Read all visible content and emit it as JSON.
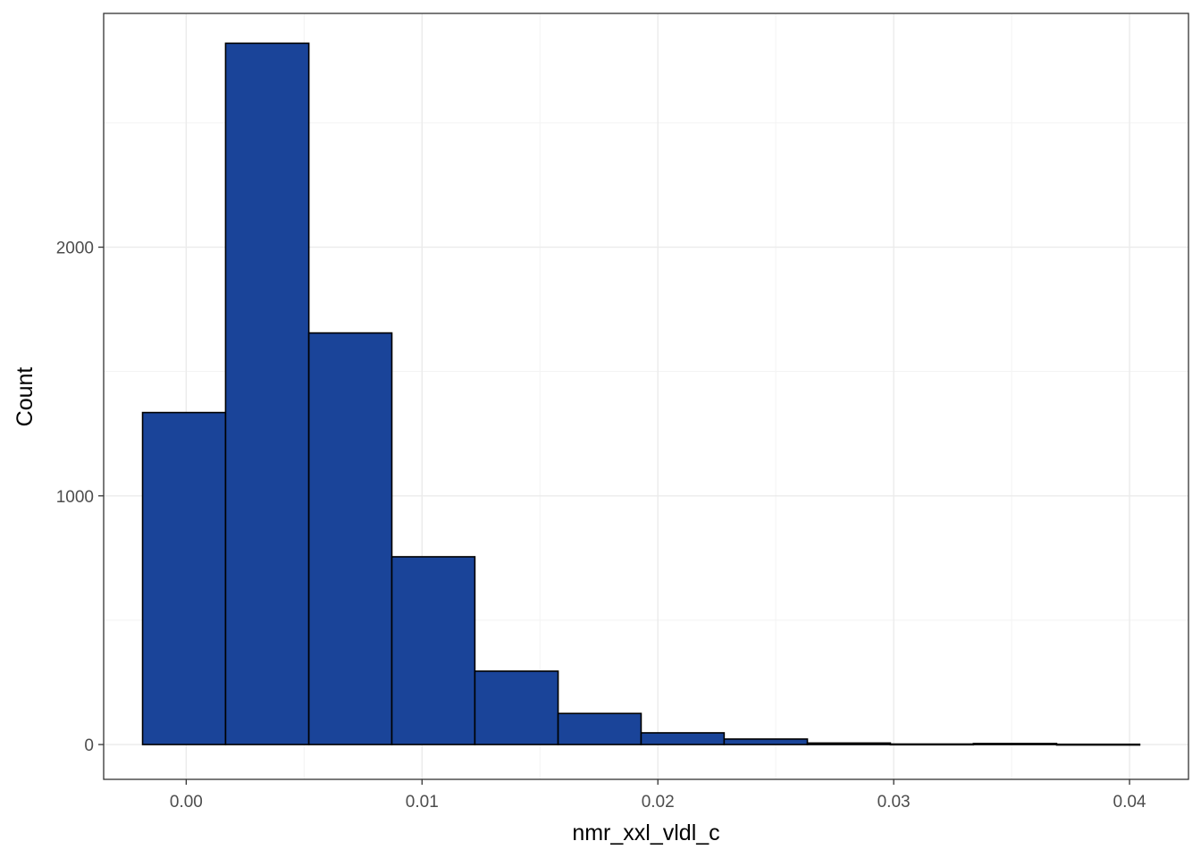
{
  "colors": {
    "bar_fill": "#1a4499",
    "bar_stroke": "#000000",
    "grid_major": "#ebebeb",
    "grid_minor": "#f3f3f3",
    "panel_border": "#333333",
    "tick_label": "#4d4d4d",
    "background": "#ffffff"
  },
  "chart_data": {
    "type": "bar",
    "subtype": "histogram",
    "xlabel": "nmr_xxl_vldl_c",
    "ylabel": "Count",
    "xlim": [
      -0.0035,
      0.0425
    ],
    "ylim": [
      -140,
      2940
    ],
    "x_ticks": [
      0.0,
      0.01,
      0.02,
      0.03,
      0.04
    ],
    "x_tick_labels": [
      "0.00",
      "0.01",
      "0.02",
      "0.03",
      "0.04"
    ],
    "y_ticks": [
      0,
      1000,
      2000
    ],
    "y_tick_labels": [
      "0",
      "1000",
      "2000"
    ],
    "y_minor_ticks": [
      500,
      1500,
      2500
    ],
    "x_minor_ticks": [
      0.005,
      0.015,
      0.025,
      0.035
    ],
    "grid": true,
    "legend": "none",
    "bins": [
      {
        "x0": -0.00185,
        "x1": 0.00167,
        "count": 1335
      },
      {
        "x0": 0.00167,
        "x1": 0.0052,
        "count": 2820
      },
      {
        "x0": 0.0052,
        "x1": 0.00872,
        "count": 1655
      },
      {
        "x0": 0.00872,
        "x1": 0.01224,
        "count": 755
      },
      {
        "x0": 0.01224,
        "x1": 0.01577,
        "count": 295
      },
      {
        "x0": 0.01577,
        "x1": 0.01929,
        "count": 125
      },
      {
        "x0": 0.01929,
        "x1": 0.02281,
        "count": 47
      },
      {
        "x0": 0.02281,
        "x1": 0.02634,
        "count": 22
      },
      {
        "x0": 0.02634,
        "x1": 0.02986,
        "count": 6
      },
      {
        "x0": 0.02986,
        "x1": 0.03338,
        "count": 2
      },
      {
        "x0": 0.03338,
        "x1": 0.03691,
        "count": 4
      },
      {
        "x0": 0.03691,
        "x1": 0.04043,
        "count": 1
      }
    ]
  }
}
